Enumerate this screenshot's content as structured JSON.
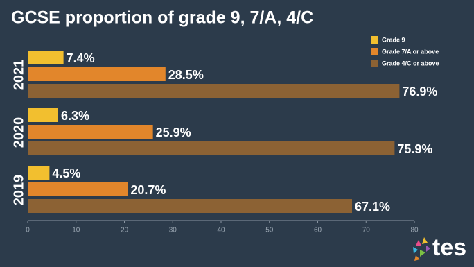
{
  "chart_data": {
    "type": "hbar",
    "title": "GCSE proportion of grade 9, 7/A, 4/C",
    "categories": [
      "2021",
      "2020",
      "2019"
    ],
    "series": [
      {
        "name": "Grade 9",
        "color": "#f2bf2f",
        "values": [
          7.4,
          6.3,
          4.5
        ],
        "value_labels": [
          "7.4%",
          "6.3%",
          "4.5%"
        ]
      },
      {
        "name": "Grade 7/A or above",
        "color": "#e2862b",
        "values": [
          28.5,
          25.9,
          20.7
        ],
        "value_labels": [
          "28.5%",
          "25.9%",
          "20.7%"
        ]
      },
      {
        "name": "Grade 4/C or above",
        "color": "#8c6234",
        "values": [
          76.9,
          75.9,
          67.1
        ],
        "value_labels": [
          "76.9%",
          "75.9%",
          "67.1%"
        ]
      }
    ],
    "xlim": [
      0,
      80
    ],
    "xticks": [
      0,
      10,
      20,
      30,
      40,
      50,
      60,
      70,
      80
    ],
    "logo": "tes"
  }
}
